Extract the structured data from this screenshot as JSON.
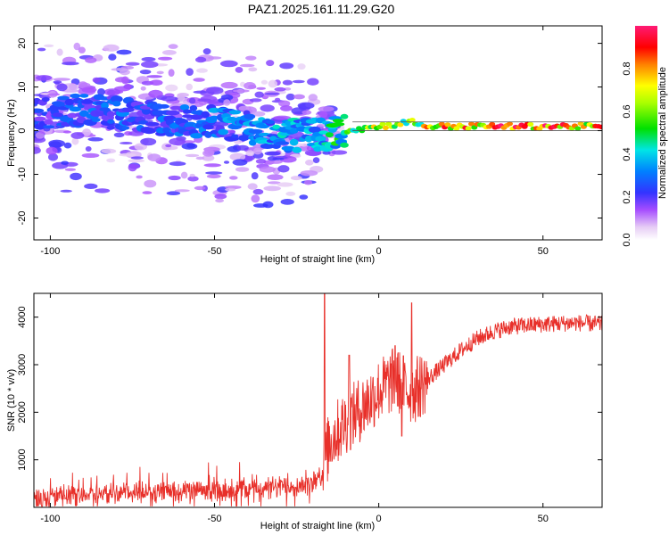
{
  "title": "PAZ1.2025.161.11.29.G20",
  "chart_data": [
    {
      "type": "heatmap",
      "name": "spectrogram",
      "xlabel": "Height of straight line (km)",
      "ylabel": "Frequency (Hz)",
      "xlim": [
        -105,
        68
      ],
      "ylim": [
        -25,
        24
      ],
      "xticks": [
        -100,
        -50,
        0,
        50
      ],
      "yticks": [
        -20,
        -10,
        0,
        10,
        20
      ],
      "colorbar": {
        "label": "Normalized spectral amplitude",
        "range": [
          0.0,
          1.0
        ],
        "ticks": [
          0.0,
          0.2,
          0.4,
          0.6,
          0.8
        ],
        "tick_labels": [
          "0.0",
          "0.2",
          "0.4",
          "0.6",
          "0.8"
        ],
        "colormap": "rainbow-white-violet-blue-cyan-green-yellow-orange-red-pink"
      },
      "ridge": {
        "x": [
          -100,
          -90,
          -80,
          -70,
          -60,
          -50,
          -40,
          -30,
          -20,
          -10,
          0,
          5,
          10,
          15,
          20,
          30,
          40,
          50,
          60,
          68
        ],
        "y": [
          4,
          5,
          4,
          3,
          2,
          2,
          1,
          -1,
          -1,
          0,
          1,
          1.5,
          2,
          1,
          1,
          1,
          1,
          1,
          1,
          1
        ],
        "amplitude": [
          0.25,
          0.3,
          0.3,
          0.3,
          0.3,
          0.35,
          0.35,
          0.4,
          0.45,
          0.55,
          0.75,
          0.7,
          0.65,
          0.8,
          0.9,
          0.95,
          0.95,
          0.95,
          0.95,
          0.85
        ]
      }
    },
    {
      "type": "line",
      "name": "snr",
      "xlabel": "Height of straight line (km)",
      "ylabel": "SNR (10 * v/v)",
      "xlim": [
        -105,
        68
      ],
      "ylim": [
        0,
        4500
      ],
      "xticks": [
        -100,
        -50,
        0,
        50
      ],
      "yticks": [
        1000,
        2000,
        3000,
        4000
      ],
      "color": "#e8302a",
      "trend": {
        "x": [
          -105,
          -90,
          -70,
          -50,
          -30,
          -20,
          -17,
          -15,
          -10,
          -5,
          0,
          5,
          10,
          15,
          20,
          25,
          30,
          35,
          40,
          50,
          60,
          68
        ],
        "y": [
          200,
          280,
          320,
          360,
          420,
          500,
          700,
          1400,
          1800,
          2100,
          2450,
          2700,
          2400,
          2700,
          3000,
          3300,
          3550,
          3700,
          3800,
          3850,
          3880,
          3850
        ]
      },
      "spikes": [
        {
          "x": -16.5,
          "y": 4500
        },
        {
          "x": -9,
          "y": 3200
        },
        {
          "x": 5,
          "y": 3400
        },
        {
          "x": 10,
          "y": 4300
        },
        {
          "x": 7,
          "y": 1500
        }
      ]
    }
  ]
}
